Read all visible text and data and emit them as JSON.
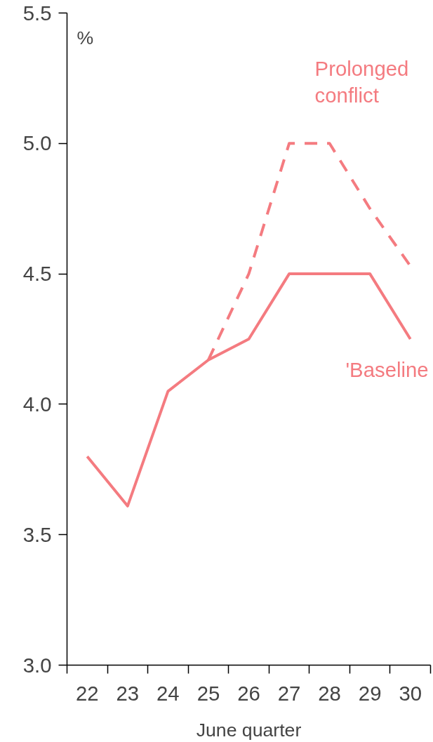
{
  "chart_data": {
    "type": "line",
    "ylabel": "%",
    "xlabel": "June quarter",
    "categories": [
      "22",
      "23",
      "24",
      "25",
      "26",
      "27",
      "28",
      "29",
      "30"
    ],
    "ylim": [
      3.0,
      5.5
    ],
    "yticks": [
      {
        "value": 3.0,
        "label": "3.0"
      },
      {
        "value": 3.5,
        "label": "3.5"
      },
      {
        "value": 4.0,
        "label": "4.0"
      },
      {
        "value": 4.5,
        "label": "4.5"
      },
      {
        "value": 5.0,
        "label": "5.0"
      },
      {
        "value": 5.5,
        "label": "5.5"
      }
    ],
    "grid": false,
    "marker": "none",
    "series": [
      {
        "name": "Prolonged conflict",
        "color": "#f47b80",
        "line_style": "dashed",
        "values": [
          null,
          null,
          null,
          4.17,
          4.5,
          5.0,
          5.0,
          4.75,
          4.53
        ]
      },
      {
        "name": "'Baseline",
        "color": "#f47b80",
        "line_style": "solid",
        "values": [
          3.8,
          3.61,
          4.05,
          4.17,
          4.25,
          4.5,
          4.5,
          4.5,
          4.25
        ]
      }
    ]
  }
}
